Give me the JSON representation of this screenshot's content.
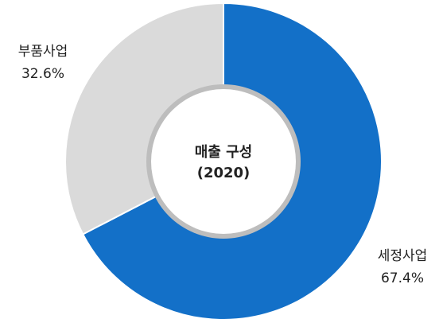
{
  "chart_data": {
    "type": "pie",
    "donut": true,
    "center_title": "매출 구성",
    "center_subtitle": "(2020)",
    "slices": [
      {
        "label": "세정사업",
        "value": 67.4,
        "value_label": "67.4%",
        "color": "#1370c8"
      },
      {
        "label": "부품사업",
        "value": 32.6,
        "value_label": "32.6%",
        "color": "#dadada"
      }
    ],
    "start": "12 o'clock",
    "direction": "clockwise",
    "hole_ring_color": "#bdbdbd"
  }
}
